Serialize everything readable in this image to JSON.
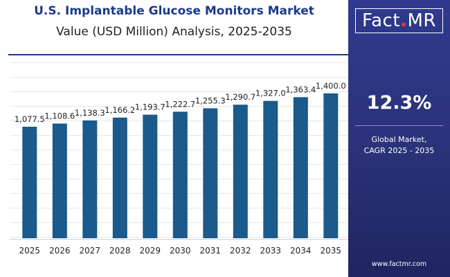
{
  "chart_data": {
    "type": "bar",
    "title": "U.S. Implantable Glucose Monitors Market",
    "subtitle": "Value (USD Million) Analysis, 2025-2035",
    "categories": [
      "2025",
      "2026",
      "2027",
      "2028",
      "2029",
      "2030",
      "2031",
      "2032",
      "2033",
      "2034",
      "2035"
    ],
    "values": [
      1077.5,
      1108.6,
      1138.3,
      1166.2,
      1193.7,
      1222.7,
      1255.3,
      1290.7,
      1327.0,
      1363.4,
      1400.0
    ],
    "data_labels": [
      "1,077.5",
      "1,108.6",
      "1,138.3",
      "1,166.2",
      "1,193.7",
      "1,222.7",
      "1,255.3",
      "1,290.7",
      "1,327.0",
      "1,363.4",
      "1,400.0"
    ],
    "ylim": [
      0,
      1700
    ],
    "bar_color": "#1a5a8c",
    "grid": true,
    "legend": "none"
  },
  "brand": {
    "name_main": "Fact",
    "name_dot": ".",
    "name_suffix": "MR",
    "website": "www.factmr.com"
  },
  "sidebar": {
    "cagr_value": "12.3%",
    "caption_line1": "Global Market,",
    "caption_line2": "CAGR 2025 - 2035"
  },
  "colors": {
    "title": "#1b3a8c",
    "panel": "#2a3278",
    "accent": "#e23b3b"
  }
}
